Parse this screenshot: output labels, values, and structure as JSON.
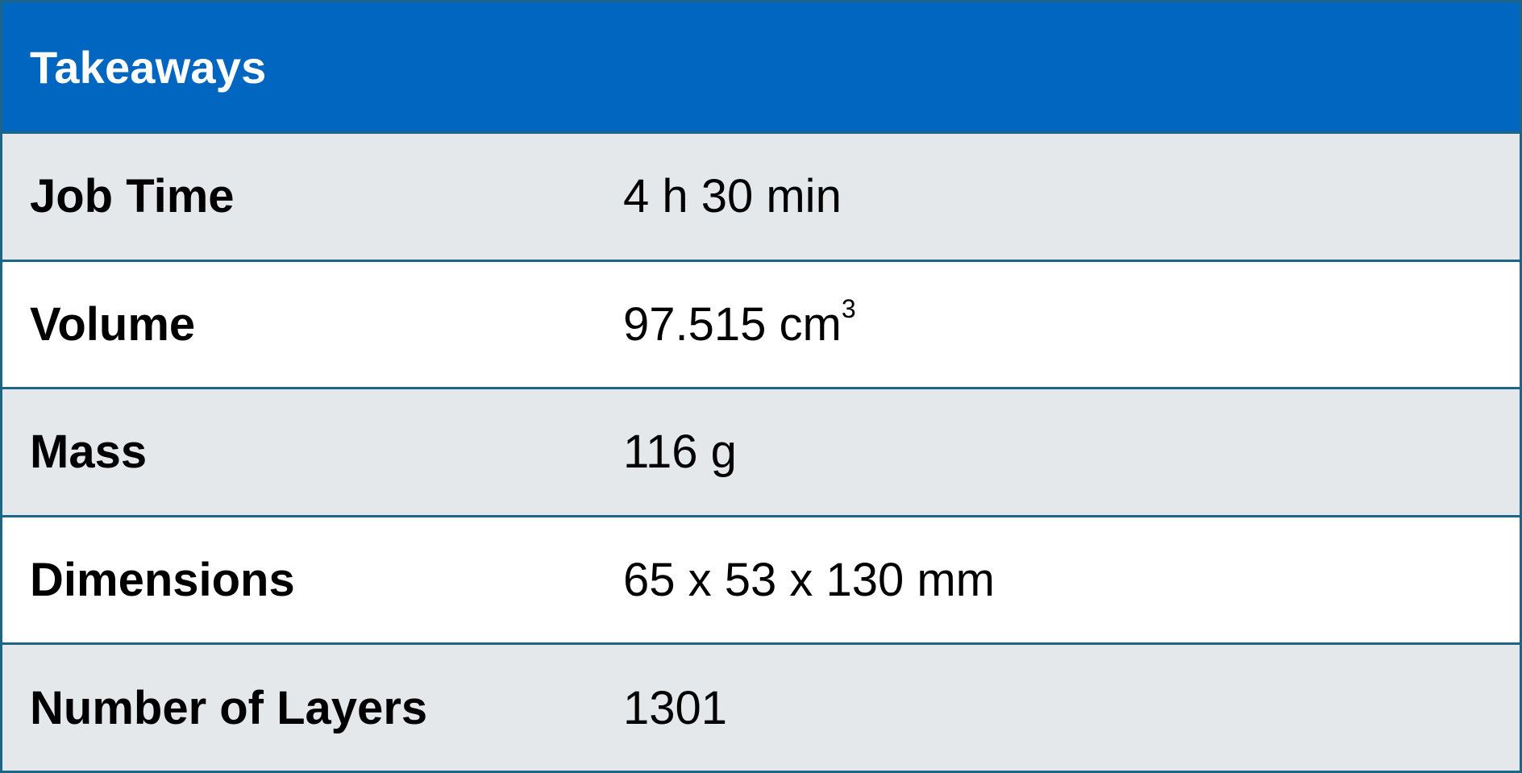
{
  "header": {
    "title": "Takeaways",
    "background_color": "#0066bf",
    "text_color": "#ffffff"
  },
  "rows": [
    {
      "label": "Job Time",
      "value": "4 h 30 min"
    },
    {
      "label": "Volume",
      "value": "97.515 cm",
      "value_superscript": "3"
    },
    {
      "label": "Mass",
      "value": "116 g"
    },
    {
      "label": "Dimensions",
      "value": "65 x 53 x 130 mm"
    },
    {
      "label": "Number of Layers",
      "value": "1301"
    }
  ],
  "colors": {
    "border": "#1d6586",
    "shaded_row": "#e5e8eb",
    "plain_row": "#ffffff"
  }
}
